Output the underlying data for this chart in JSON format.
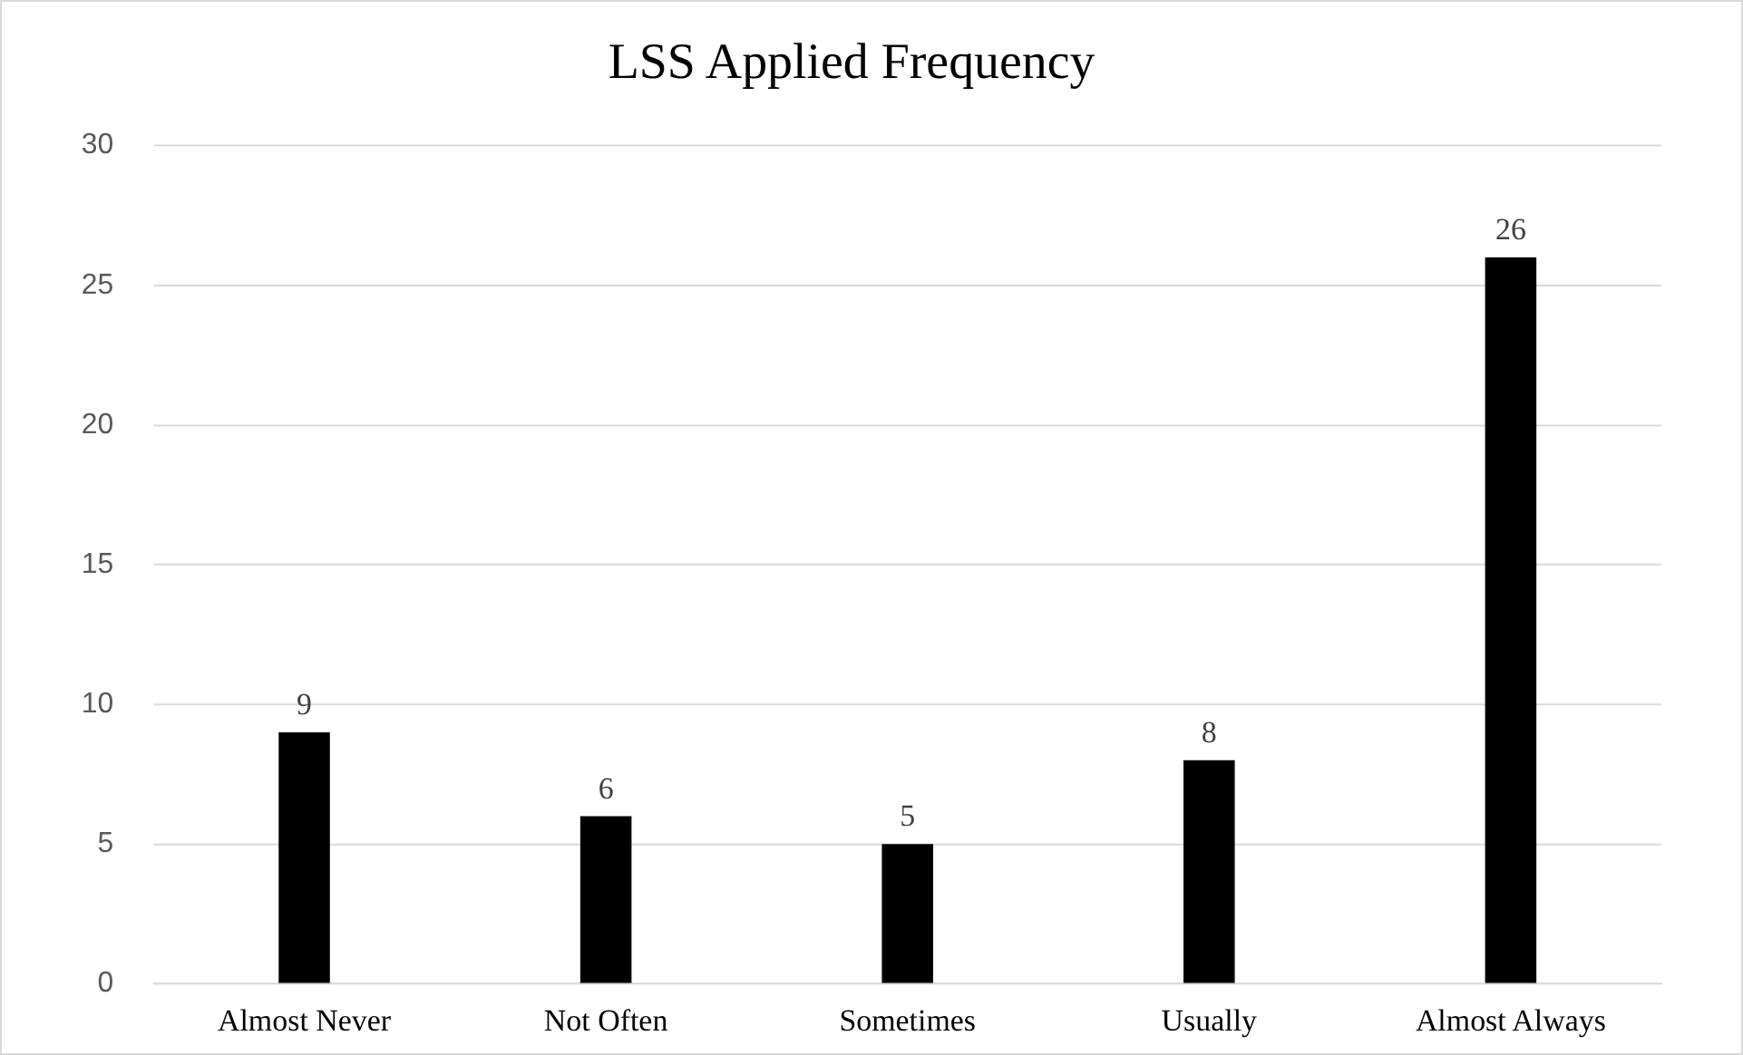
{
  "chart_data": {
    "type": "bar",
    "title": "LSS Applied Frequency",
    "categories": [
      "Almost Never",
      "Not Often",
      "Sometimes",
      "Usually",
      "Almost Always"
    ],
    "values": [
      9,
      6,
      5,
      8,
      26
    ],
    "color": "#000000",
    "ylim": [
      0,
      30
    ],
    "yticks": [
      0,
      5,
      10,
      15,
      20,
      25,
      30
    ],
    "grid": "y",
    "legend": false,
    "data_labels": true
  }
}
